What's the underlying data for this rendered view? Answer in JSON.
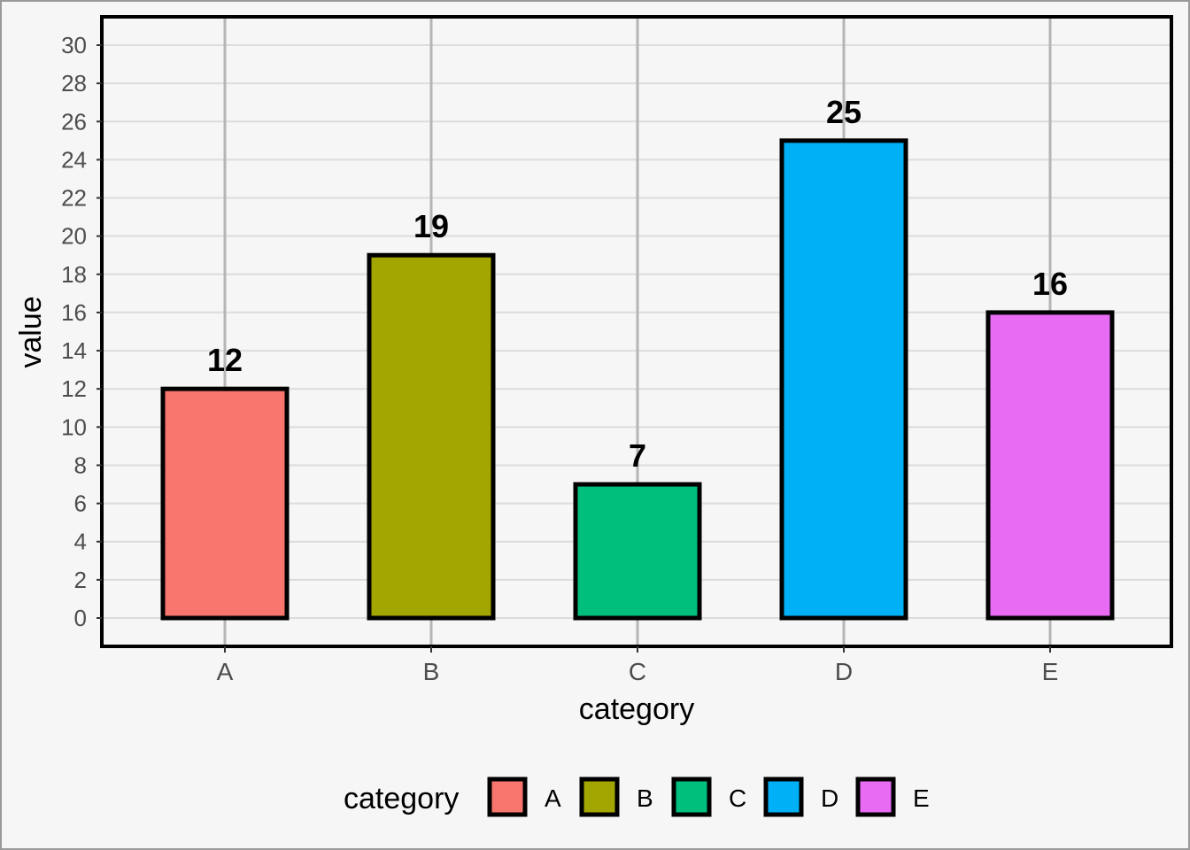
{
  "chart_data": {
    "type": "bar",
    "categories": [
      "A",
      "B",
      "C",
      "D",
      "E"
    ],
    "values": [
      12,
      19,
      7,
      25,
      16
    ],
    "colors": [
      "#F8766D",
      "#A3A500",
      "#00BF7D",
      "#00B0F6",
      "#E76BF3"
    ],
    "xlabel": "category",
    "ylabel": "value",
    "ylim": [
      0,
      30
    ],
    "yticks": [
      0,
      2,
      4,
      6,
      8,
      10,
      12,
      14,
      16,
      18,
      20,
      22,
      24,
      26,
      28,
      30
    ],
    "grid": true,
    "legend": {
      "title": "category",
      "placement": "bottom",
      "entries": [
        "A",
        "B",
        "C",
        "D",
        "E"
      ]
    },
    "data_labels": [
      "12",
      "19",
      "7",
      "25",
      "16"
    ]
  }
}
